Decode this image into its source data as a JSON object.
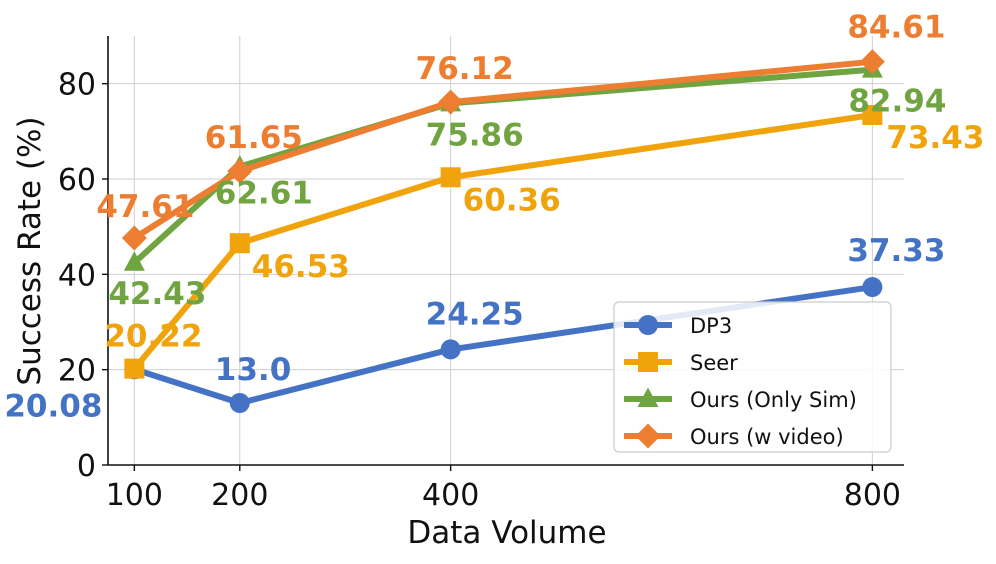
{
  "chart_data": {
    "type": "line",
    "xlabel": "Data Volume",
    "ylabel": "Success Rate (%)",
    "x": [
      100,
      200,
      400,
      800
    ],
    "x_tick_labels": [
      "100",
      "200",
      "400",
      "800"
    ],
    "y_ticks": [
      0,
      20,
      40,
      60,
      80
    ],
    "y_tick_labels": [
      "0",
      "20",
      "40",
      "60",
      "80"
    ],
    "xlim": [
      75,
      830
    ],
    "ylim": [
      0,
      90
    ],
    "grid": true,
    "legend_position": "lower-right",
    "series": [
      {
        "name": "DP3",
        "values": [
          20.08,
          13.0,
          24.25,
          37.33
        ],
        "labels": [
          "20.08",
          "13.0",
          "24.25",
          "37.33"
        ],
        "color": "#4472c4",
        "marker": "circle"
      },
      {
        "name": "Seer",
        "values": [
          20.22,
          46.53,
          60.36,
          73.43
        ],
        "labels": [
          "20.22",
          "46.53",
          "60.36",
          "73.43"
        ],
        "color": "#f0a30a",
        "marker": "square"
      },
      {
        "name": "Ours (Only Sim)",
        "values": [
          42.43,
          62.61,
          75.86,
          82.94
        ],
        "labels": [
          "42.43",
          "62.61",
          "75.86",
          "82.94"
        ],
        "color": "#70a440",
        "marker": "triangle"
      },
      {
        "name": "Ours (w video)",
        "values": [
          47.61,
          61.65,
          76.12,
          84.61
        ],
        "labels": [
          "47.61",
          "61.65",
          "76.12",
          "84.61"
        ],
        "color": "#ed7d31",
        "marker": "diamond"
      }
    ]
  }
}
